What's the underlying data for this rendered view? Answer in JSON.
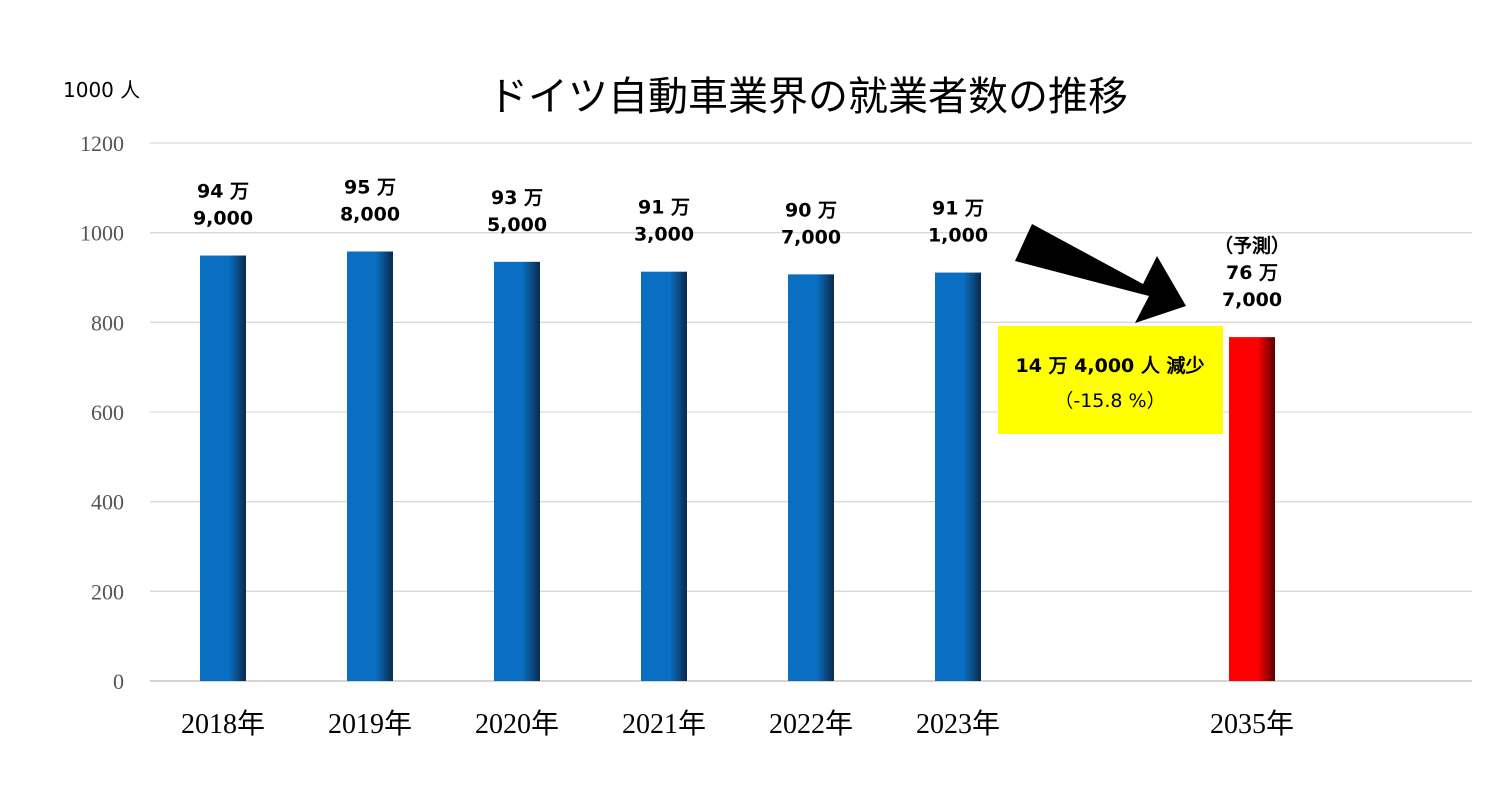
{
  "chart_data": {
    "type": "bar",
    "title": "ドイツ自動車業界の就業者数の推移",
    "unit_label": "1000 人",
    "ylim": [
      0,
      1200
    ],
    "yticks": [
      0,
      200,
      400,
      600,
      800,
      1000,
      1200
    ],
    "grid": true,
    "categories": [
      "2018年",
      "2019年",
      "2020年",
      "2021年",
      "2022年",
      "2023年",
      "2035年"
    ],
    "values": [
      949,
      958,
      935,
      913,
      907,
      911,
      767
    ],
    "data_labels": [
      [
        "94 万",
        "9,000"
      ],
      [
        "95 万",
        "8,000"
      ],
      [
        "93 万",
        "5,000"
      ],
      [
        "91 万",
        "3,000"
      ],
      [
        "90 万",
        "7,000"
      ],
      [
        "91 万",
        "1,000"
      ],
      [
        "（予測）",
        "76 万",
        "7,000"
      ]
    ],
    "colors": {
      "actual": "#0A6FC2",
      "forecast": "#FF0000",
      "grid": "#D9D9D9",
      "callout_bg": "#FFFF00",
      "arrow": "#000000"
    },
    "annotation": {
      "line1": "14 万 4,000 人 減少",
      "line2": "（-15.8 %）"
    }
  }
}
